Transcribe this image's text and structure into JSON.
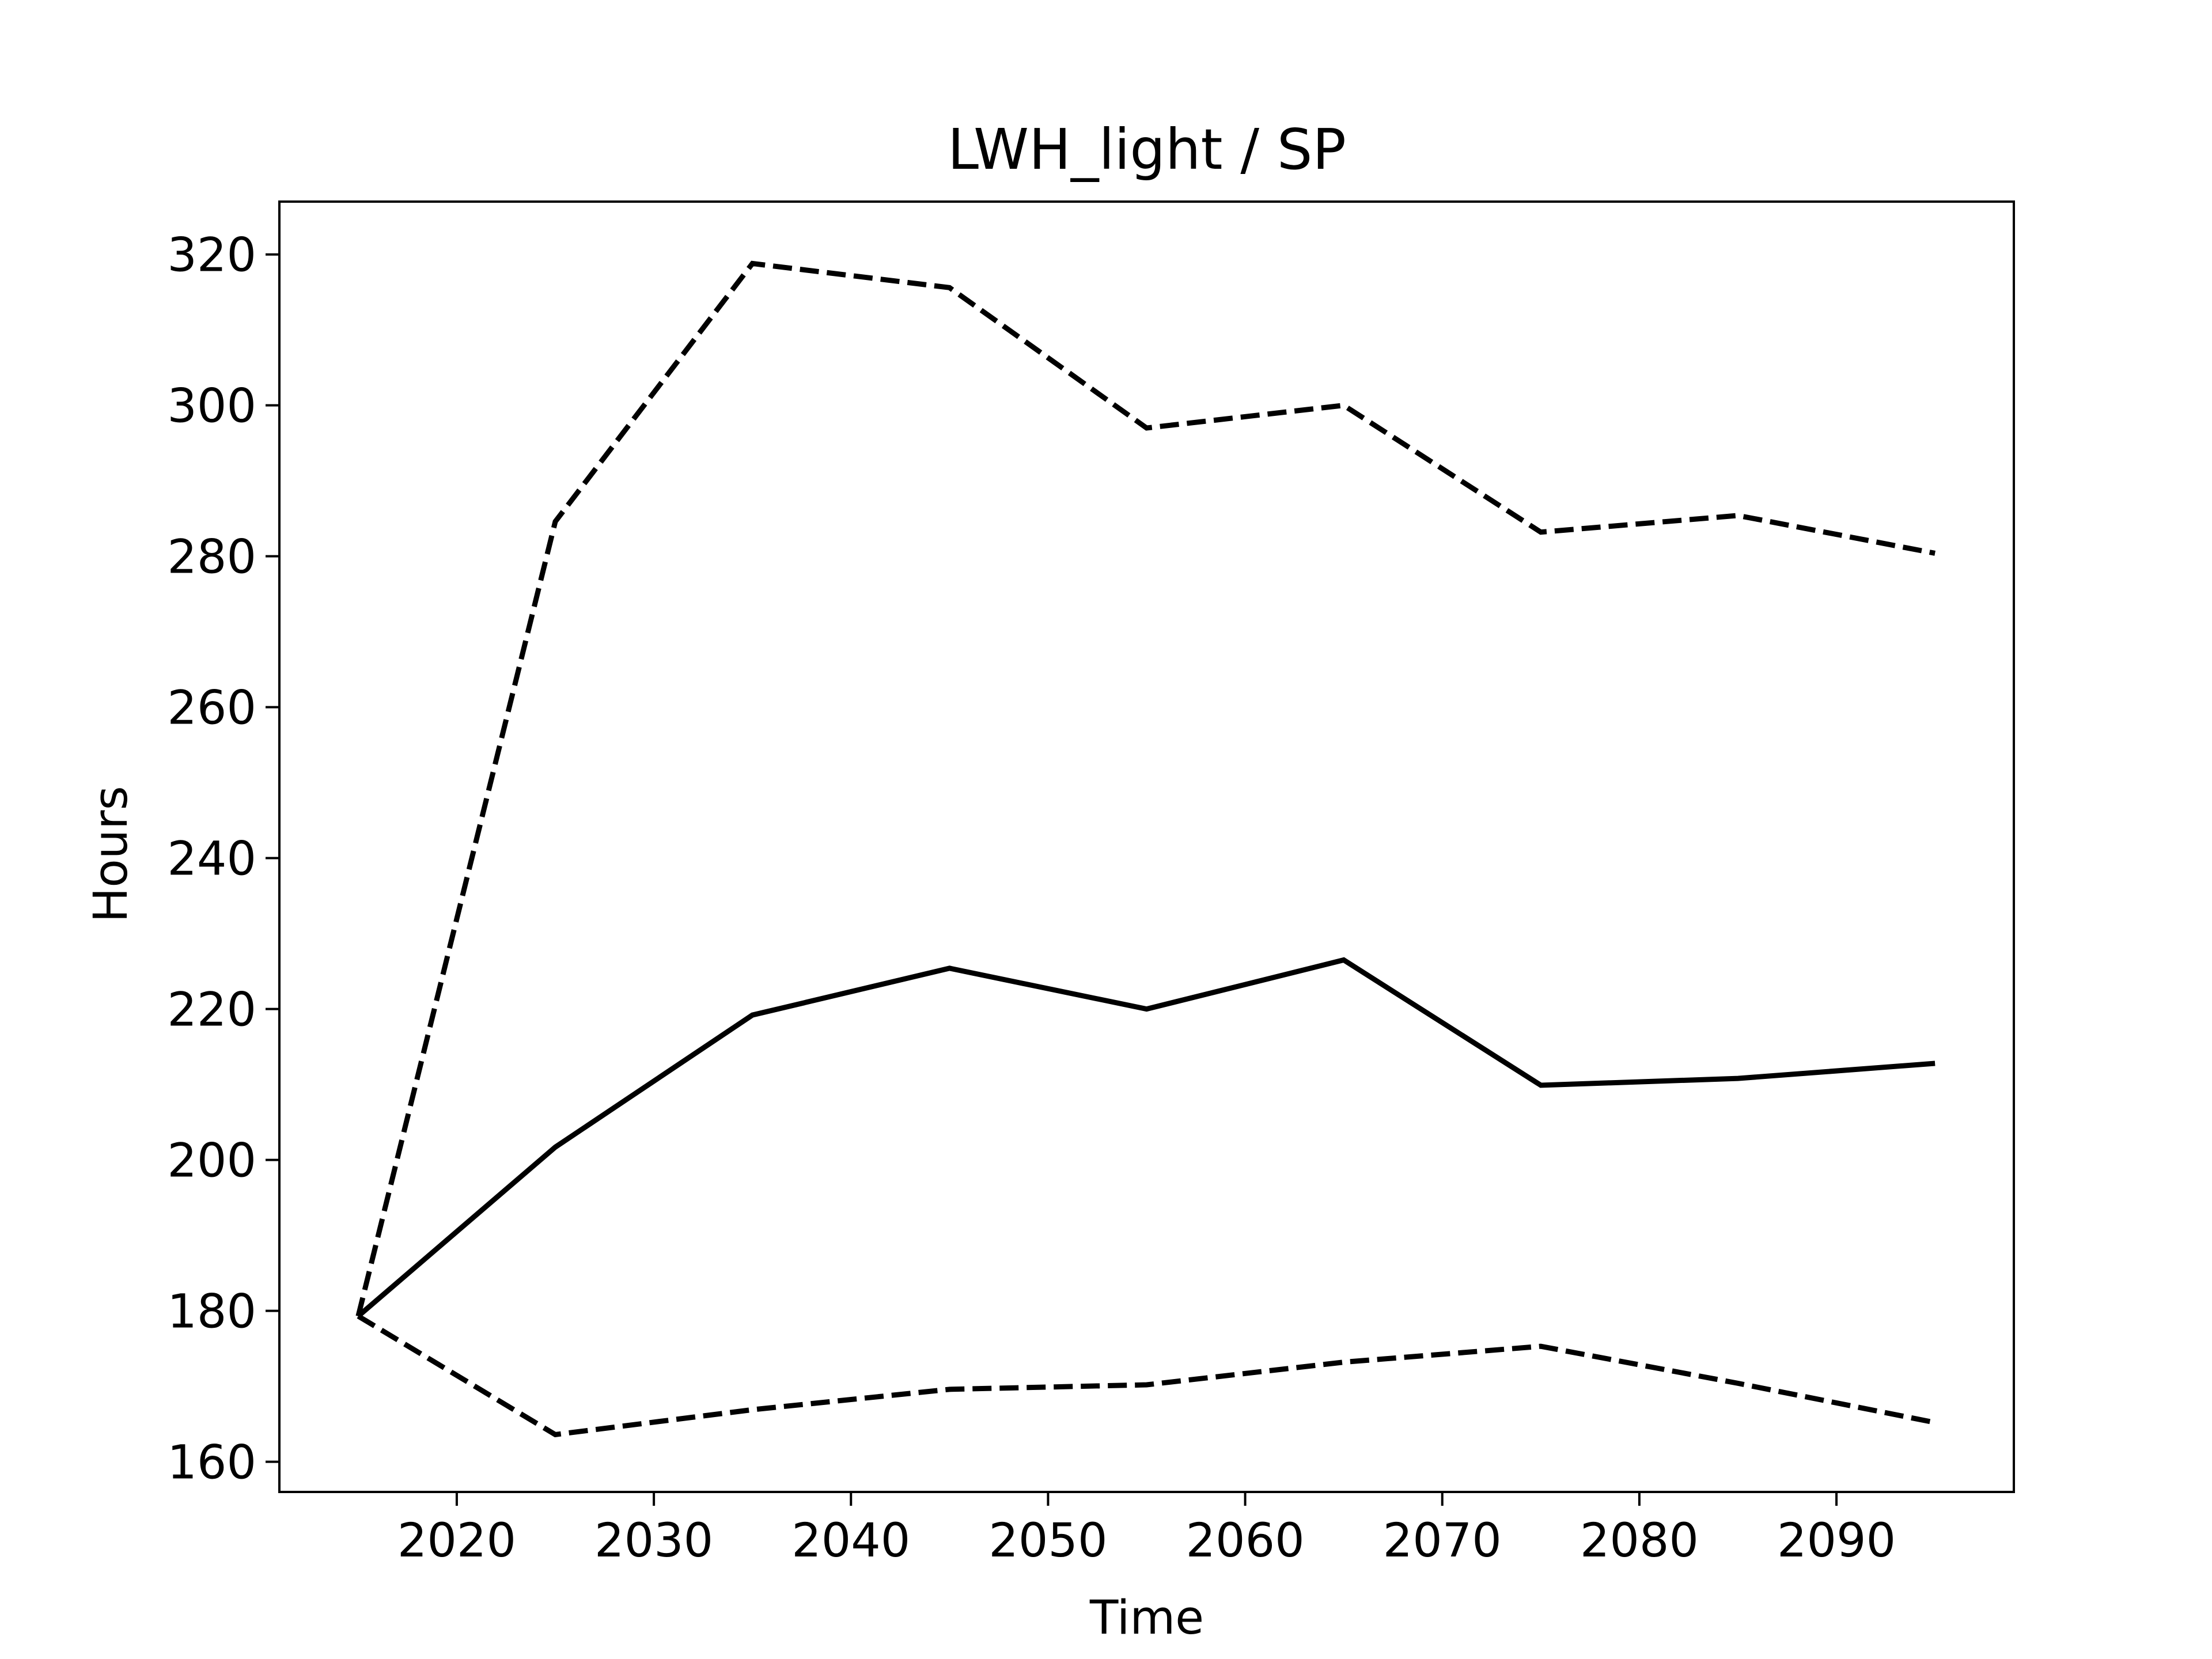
{
  "chart_data": {
    "type": "line",
    "title": "LWH_light / SP",
    "xlabel": "Time",
    "ylabel": "Hours",
    "xlim": [
      2011,
      2099
    ],
    "ylim": [
      156.0,
      327.0
    ],
    "xticks": [
      2020,
      2030,
      2040,
      2050,
      2060,
      2070,
      2080,
      2090
    ],
    "yticks": [
      160,
      180,
      200,
      220,
      240,
      260,
      280,
      300,
      320
    ],
    "grid": false,
    "x": [
      2015,
      2025,
      2035,
      2045,
      2055,
      2065,
      2075,
      2085,
      2095
    ],
    "series": [
      {
        "style": "solid",
        "values": [
          179.3,
          201.7,
          219.2,
          225.4,
          220.0,
          226.5,
          209.9,
          210.8,
          212.8
        ]
      },
      {
        "style": "dashed",
        "values": [
          179.3,
          284.6,
          318.8,
          315.6,
          297.0,
          300.0,
          283.2,
          285.4,
          280.4
        ]
      },
      {
        "style": "dashed",
        "values": [
          179.3,
          163.6,
          166.9,
          169.6,
          170.2,
          173.2,
          175.3,
          170.4,
          165.2
        ]
      }
    ],
    "colors": {
      "line": "#000000",
      "frame": "#000000",
      "background": "#ffffff"
    }
  }
}
